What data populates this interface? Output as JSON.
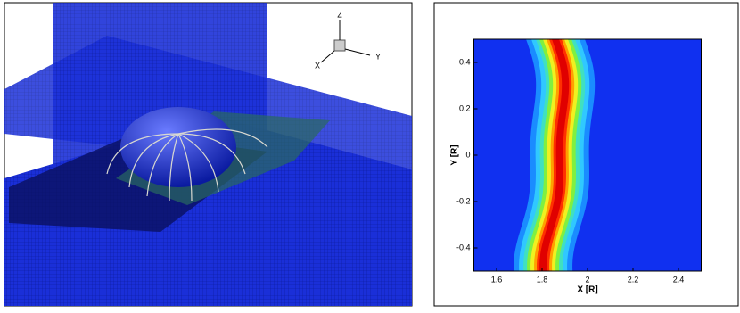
{
  "scene": {
    "axis_labels": [
      "Z",
      "Y",
      "X"
    ]
  },
  "chart_data": {
    "type": "contour",
    "xlabel": "X [R]",
    "ylabel": "Y [R]",
    "xlim": [
      1.5,
      2.5
    ],
    "ylim": [
      -0.5,
      0.5
    ],
    "xticks": [
      1.6,
      1.8,
      2,
      2.2,
      2.4
    ],
    "yticks": [
      -0.4,
      -0.2,
      0,
      0.2,
      0.4
    ]
  }
}
